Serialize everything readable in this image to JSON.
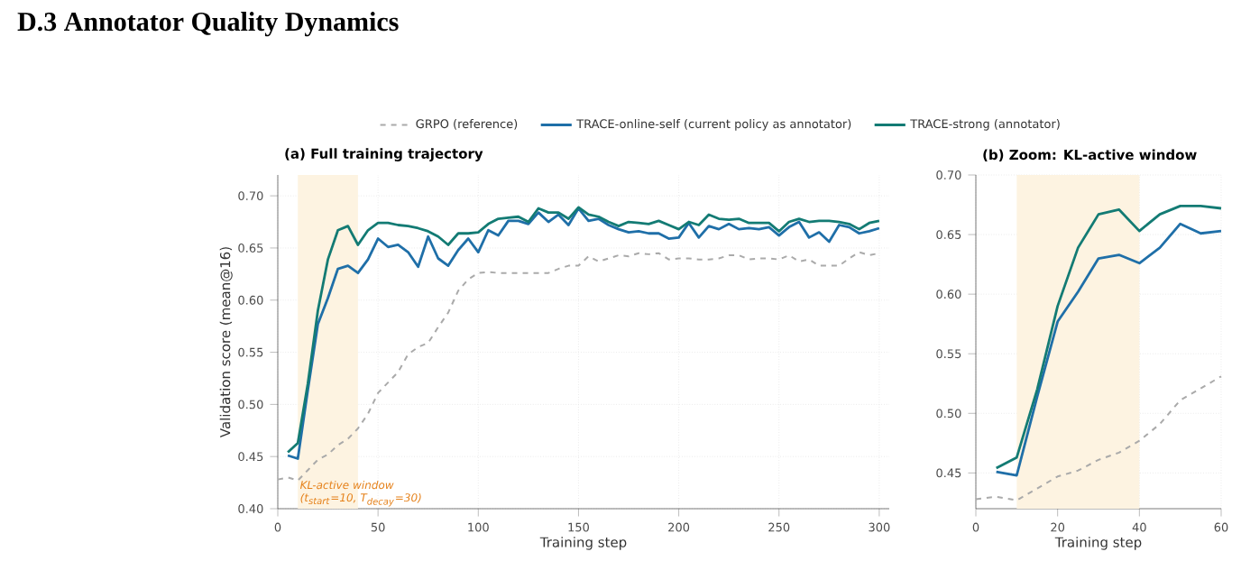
{
  "chart_data": [
    {
      "type": "line",
      "title": "(a) Full training trajectory",
      "xlabel": "Training step",
      "ylabel": "Validation score (mean@16)",
      "annotations": [
        "D.3 Annotator Quality Dynamics"
      ],
      "xlim": [
        0,
        305
      ],
      "ylim": [
        0.4,
        0.72
      ],
      "xticks": [
        0,
        50,
        100,
        150,
        200,
        250,
        300
      ],
      "yticks": [
        {
          "value": 0.4,
          "label": "0.40"
        },
        {
          "value": 0.45,
          "label": "0.45"
        },
        {
          "value": 0.5,
          "label": "0.50"
        },
        {
          "value": 0.55,
          "label": "0.55"
        },
        {
          "value": 0.6,
          "label": "0.60"
        },
        {
          "value": 0.65,
          "label": "0.65"
        },
        {
          "value": 0.7,
          "label": "0.70"
        }
      ],
      "grid": true,
      "legend": "top",
      "bands": [
        {
          "axis": "x",
          "from": 10,
          "to": 40,
          "label": "KL-active window (t$_{start}$=10, T$_{decay}$=30)",
          "color": "#fdf3e1"
        }
      ],
      "series": [
        {
          "name": "GRPO  (reference)",
          "color": "#aaaaaa",
          "line_style": "dashed",
          "x": [
            0,
            5,
            10,
            15,
            20,
            25,
            30,
            35,
            40,
            45,
            50,
            55,
            60,
            65,
            70,
            75,
            80,
            85,
            90,
            95,
            100,
            105,
            110,
            115,
            120,
            125,
            130,
            135,
            140,
            145,
            150,
            155,
            160,
            165,
            170,
            175,
            180,
            185,
            190,
            195,
            200,
            205,
            210,
            215,
            220,
            225,
            230,
            235,
            240,
            245,
            250,
            255,
            260,
            265,
            270,
            275,
            280,
            285,
            290,
            295,
            300
          ],
          "values": [
            0.428,
            0.43,
            0.427,
            0.437,
            0.447,
            0.452,
            0.461,
            0.467,
            0.477,
            0.491,
            0.511,
            0.521,
            0.531,
            0.548,
            0.555,
            0.559,
            0.574,
            0.588,
            0.609,
            0.62,
            0.626,
            0.627,
            0.626,
            0.626,
            0.626,
            0.626,
            0.626,
            0.626,
            0.63,
            0.633,
            0.633,
            0.642,
            0.637,
            0.64,
            0.643,
            0.642,
            0.645,
            0.644,
            0.645,
            0.639,
            0.64,
            0.64,
            0.639,
            0.639,
            0.64,
            0.643,
            0.643,
            0.639,
            0.64,
            0.64,
            0.639,
            0.643,
            0.637,
            0.639,
            0.633,
            0.633,
            0.633,
            0.64,
            0.646,
            0.643,
            0.645
          ]
        },
        {
          "name": "TRACE-online-self  (current policy as annotator)",
          "color": "#1f6fa8",
          "line_style": "solid",
          "x": [
            5,
            10,
            15,
            20,
            25,
            30,
            35,
            40,
            45,
            50,
            55,
            60,
            65,
            70,
            75,
            80,
            85,
            90,
            95,
            100,
            105,
            110,
            115,
            120,
            125,
            130,
            135,
            140,
            145,
            150,
            155,
            160,
            165,
            170,
            175,
            180,
            185,
            190,
            195,
            200,
            205,
            210,
            215,
            220,
            225,
            230,
            235,
            240,
            245,
            250,
            255,
            260,
            265,
            270,
            275,
            280,
            285,
            290,
            295,
            300
          ],
          "values": [
            0.451,
            0.448,
            0.514,
            0.577,
            0.602,
            0.63,
            0.633,
            0.626,
            0.639,
            0.659,
            0.651,
            0.653,
            0.646,
            0.632,
            0.661,
            0.64,
            0.633,
            0.648,
            0.659,
            0.646,
            0.667,
            0.662,
            0.676,
            0.676,
            0.673,
            0.684,
            0.675,
            0.682,
            0.672,
            0.688,
            0.676,
            0.678,
            0.672,
            0.668,
            0.665,
            0.666,
            0.664,
            0.664,
            0.659,
            0.66,
            0.674,
            0.66,
            0.671,
            0.668,
            0.673,
            0.668,
            0.669,
            0.668,
            0.67,
            0.662,
            0.67,
            0.675,
            0.66,
            0.665,
            0.656,
            0.672,
            0.67,
            0.664,
            0.666,
            0.669
          ]
        },
        {
          "name": "TRACE-strong  (annotator)",
          "color": "#137b74",
          "line_style": "solid",
          "x": [
            5,
            10,
            15,
            20,
            25,
            30,
            35,
            40,
            45,
            50,
            55,
            60,
            65,
            70,
            75,
            80,
            85,
            90,
            95,
            100,
            105,
            110,
            115,
            120,
            125,
            130,
            135,
            140,
            145,
            150,
            155,
            160,
            165,
            170,
            175,
            180,
            185,
            190,
            195,
            200,
            205,
            210,
            215,
            220,
            225,
            230,
            235,
            240,
            245,
            250,
            255,
            260,
            265,
            270,
            275,
            280,
            285,
            290,
            295,
            300
          ],
          "values": [
            0.454,
            0.463,
            0.52,
            0.59,
            0.639,
            0.667,
            0.671,
            0.653,
            0.667,
            0.674,
            0.674,
            0.672,
            0.671,
            0.669,
            0.666,
            0.661,
            0.653,
            0.664,
            0.664,
            0.665,
            0.673,
            0.678,
            0.679,
            0.68,
            0.675,
            0.688,
            0.684,
            0.684,
            0.678,
            0.689,
            0.682,
            0.68,
            0.675,
            0.671,
            0.675,
            0.674,
            0.673,
            0.676,
            0.672,
            0.668,
            0.675,
            0.672,
            0.682,
            0.678,
            0.677,
            0.678,
            0.674,
            0.674,
            0.674,
            0.666,
            0.675,
            0.678,
            0.675,
            0.676,
            0.676,
            0.675,
            0.673,
            0.668,
            0.674,
            0.676
          ]
        }
      ]
    },
    {
      "type": "line",
      "title": "(b) Zoom: KL-active window",
      "xlabel": "Training step",
      "xlim": [
        0,
        60
      ],
      "ylim": [
        0.42,
        0.7
      ],
      "xticks": [
        0,
        20,
        40,
        60
      ],
      "yticks": [
        {
          "value": 0.45,
          "label": "0.45"
        },
        {
          "value": 0.5,
          "label": "0.50"
        },
        {
          "value": 0.55,
          "label": "0.55"
        },
        {
          "value": 0.6,
          "label": "0.60"
        },
        {
          "value": 0.65,
          "label": "0.65"
        },
        {
          "value": 0.7,
          "label": "0.70"
        }
      ],
      "grid": true,
      "bands": [
        {
          "axis": "x",
          "from": 10,
          "to": 40,
          "color": "#fdf3e1"
        }
      ],
      "series": [
        {
          "color": "#aaaaaa",
          "line_style": "dashed",
          "x": [
            0,
            5,
            10,
            15,
            20,
            25,
            30,
            35,
            40,
            45,
            50,
            55,
            60
          ],
          "values": [
            0.428,
            0.43,
            0.427,
            0.437,
            0.447,
            0.452,
            0.461,
            0.467,
            0.477,
            0.491,
            0.511,
            0.521,
            0.531
          ]
        },
        {
          "color": "#1f6fa8",
          "line_style": "solid",
          "x": [
            5,
            10,
            15,
            20,
            25,
            30,
            35,
            40,
            45,
            50,
            55,
            60
          ],
          "values": [
            0.451,
            0.448,
            0.514,
            0.577,
            0.602,
            0.63,
            0.633,
            0.626,
            0.639,
            0.659,
            0.651,
            0.653
          ]
        },
        {
          "color": "#137b74",
          "line_style": "solid",
          "x": [
            5,
            10,
            15,
            20,
            25,
            30,
            35,
            40,
            45,
            50,
            55,
            60
          ],
          "values": [
            0.454,
            0.463,
            0.52,
            0.59,
            0.639,
            0.667,
            0.671,
            0.653,
            0.667,
            0.674,
            0.674,
            0.672
          ]
        }
      ]
    }
  ]
}
